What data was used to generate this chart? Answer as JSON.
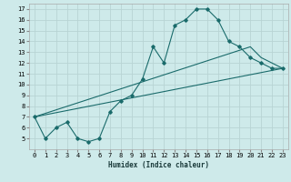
{
  "xlabel": "Humidex (Indice chaleur)",
  "bg_color": "#ceeaea",
  "grid_color": "#b8d4d4",
  "line_color": "#1a6b6b",
  "xlim": [
    -0.5,
    23.5
  ],
  "ylim": [
    4.0,
    17.5
  ],
  "xticks": [
    0,
    1,
    2,
    3,
    4,
    5,
    6,
    7,
    8,
    9,
    10,
    11,
    12,
    13,
    14,
    15,
    16,
    17,
    18,
    19,
    20,
    21,
    22,
    23
  ],
  "yticks": [
    5,
    6,
    7,
    8,
    9,
    10,
    11,
    12,
    13,
    14,
    15,
    16,
    17
  ],
  "line1_x": [
    0,
    1,
    2,
    3,
    4,
    5,
    6,
    7,
    8,
    9,
    10,
    11,
    12,
    13,
    14,
    15,
    16,
    17,
    18,
    19,
    20,
    21,
    22,
    23
  ],
  "line1_y": [
    7.0,
    5.0,
    6.0,
    6.5,
    5.0,
    4.7,
    5.0,
    7.5,
    8.5,
    9.0,
    10.5,
    13.5,
    12.0,
    15.5,
    16.0,
    17.0,
    17.0,
    16.0,
    14.0,
    13.5,
    12.5,
    12.0,
    11.5,
    11.5
  ],
  "line2_x": [
    0,
    23
  ],
  "line2_y": [
    7.0,
    11.5
  ],
  "line3_x": [
    0,
    20,
    21,
    22,
    23
  ],
  "line3_y": [
    7.0,
    13.5,
    12.5,
    12.0,
    11.5
  ]
}
